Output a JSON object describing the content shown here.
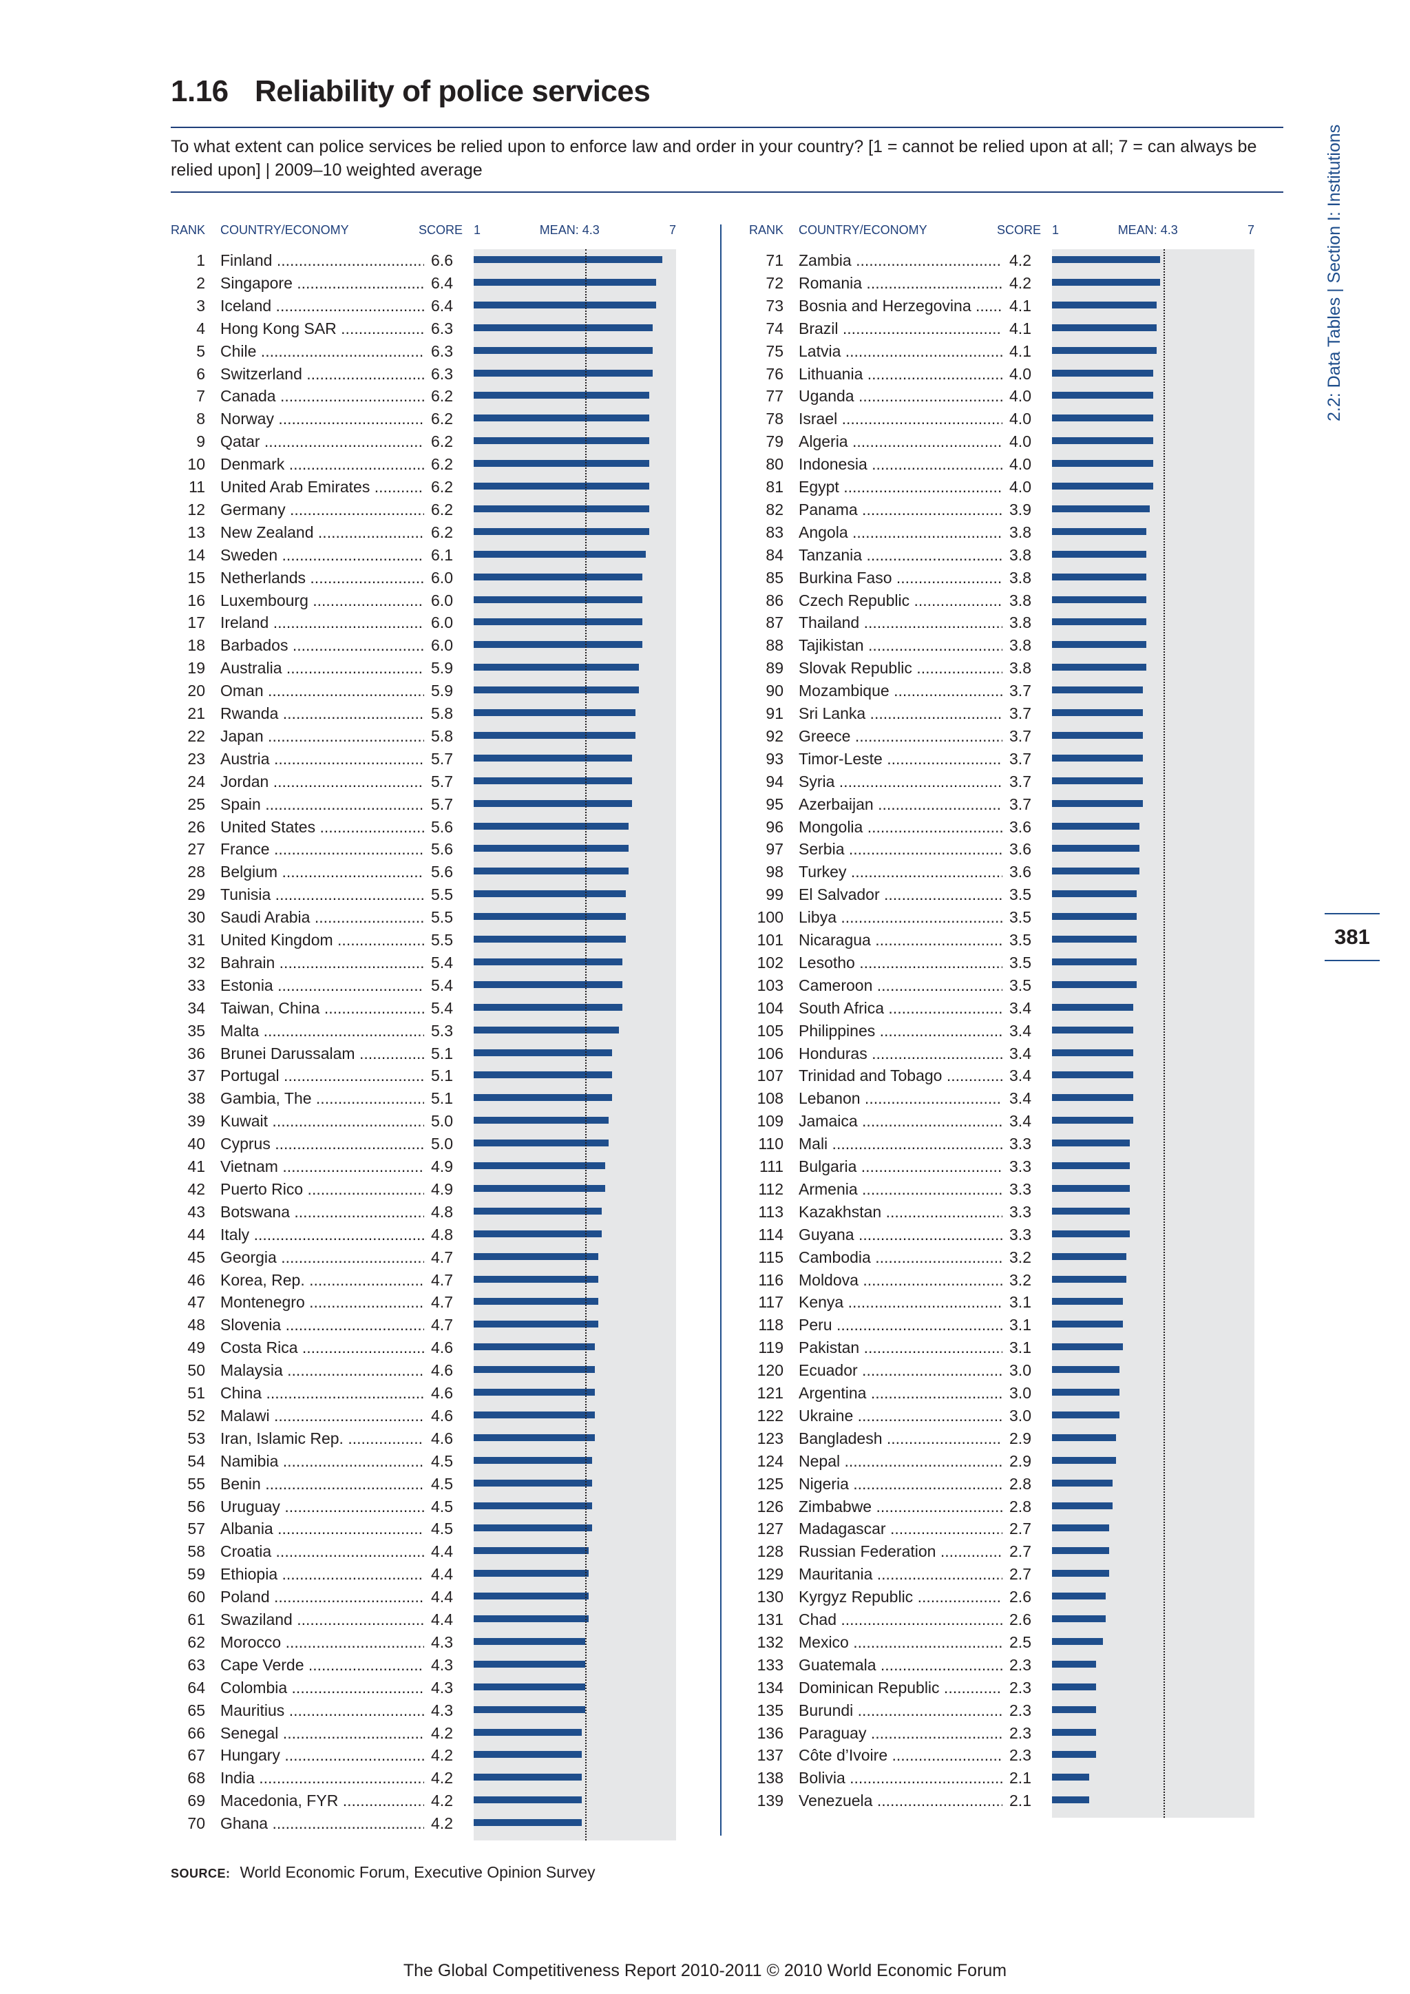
{
  "header": {
    "figure_number": "1.16",
    "title": "Reliability of police services",
    "question": "To what extent can police services be relied upon to enforce law and order in your country? [1 = cannot be relied upon at all; 7 = can always be relied upon]  |  2009–10 weighted average"
  },
  "side_label": "2.2: Data Tables  |  Section I: Institutions",
  "page_number": "381",
  "columns": {
    "rank": "RANK",
    "country": "COUNTRY/ECONOMY",
    "score": "SCORE",
    "axis_min": "1",
    "mean": "MEAN: 4.3",
    "axis_max": "7"
  },
  "chart_data": {
    "type": "bar",
    "orientation": "horizontal",
    "xlim": [
      1,
      7
    ],
    "mean": 4.3,
    "rows": [
      {
        "rank": 1,
        "country": "Finland",
        "score": 6.6
      },
      {
        "rank": 2,
        "country": "Singapore",
        "score": 6.4
      },
      {
        "rank": 3,
        "country": "Iceland",
        "score": 6.4
      },
      {
        "rank": 4,
        "country": "Hong Kong SAR",
        "score": 6.3
      },
      {
        "rank": 5,
        "country": "Chile",
        "score": 6.3
      },
      {
        "rank": 6,
        "country": "Switzerland",
        "score": 6.3
      },
      {
        "rank": 7,
        "country": "Canada",
        "score": 6.2
      },
      {
        "rank": 8,
        "country": "Norway",
        "score": 6.2
      },
      {
        "rank": 9,
        "country": "Qatar",
        "score": 6.2
      },
      {
        "rank": 10,
        "country": "Denmark",
        "score": 6.2
      },
      {
        "rank": 11,
        "country": "United Arab Emirates",
        "score": 6.2
      },
      {
        "rank": 12,
        "country": "Germany",
        "score": 6.2
      },
      {
        "rank": 13,
        "country": "New Zealand",
        "score": 6.2
      },
      {
        "rank": 14,
        "country": "Sweden",
        "score": 6.1
      },
      {
        "rank": 15,
        "country": "Netherlands",
        "score": 6.0
      },
      {
        "rank": 16,
        "country": "Luxembourg",
        "score": 6.0
      },
      {
        "rank": 17,
        "country": "Ireland",
        "score": 6.0
      },
      {
        "rank": 18,
        "country": "Barbados",
        "score": 6.0
      },
      {
        "rank": 19,
        "country": "Australia",
        "score": 5.9
      },
      {
        "rank": 20,
        "country": "Oman",
        "score": 5.9
      },
      {
        "rank": 21,
        "country": "Rwanda",
        "score": 5.8
      },
      {
        "rank": 22,
        "country": "Japan",
        "score": 5.8
      },
      {
        "rank": 23,
        "country": "Austria",
        "score": 5.7
      },
      {
        "rank": 24,
        "country": "Jordan",
        "score": 5.7
      },
      {
        "rank": 25,
        "country": "Spain",
        "score": 5.7
      },
      {
        "rank": 26,
        "country": "United States",
        "score": 5.6
      },
      {
        "rank": 27,
        "country": "France",
        "score": 5.6
      },
      {
        "rank": 28,
        "country": "Belgium",
        "score": 5.6
      },
      {
        "rank": 29,
        "country": "Tunisia",
        "score": 5.5
      },
      {
        "rank": 30,
        "country": "Saudi Arabia",
        "score": 5.5
      },
      {
        "rank": 31,
        "country": "United Kingdom",
        "score": 5.5
      },
      {
        "rank": 32,
        "country": "Bahrain",
        "score": 5.4
      },
      {
        "rank": 33,
        "country": "Estonia",
        "score": 5.4
      },
      {
        "rank": 34,
        "country": "Taiwan, China",
        "score": 5.4
      },
      {
        "rank": 35,
        "country": "Malta",
        "score": 5.3
      },
      {
        "rank": 36,
        "country": "Brunei Darussalam",
        "score": 5.1
      },
      {
        "rank": 37,
        "country": "Portugal",
        "score": 5.1
      },
      {
        "rank": 38,
        "country": "Gambia, The",
        "score": 5.1
      },
      {
        "rank": 39,
        "country": "Kuwait",
        "score": 5.0
      },
      {
        "rank": 40,
        "country": "Cyprus",
        "score": 5.0
      },
      {
        "rank": 41,
        "country": "Vietnam",
        "score": 4.9
      },
      {
        "rank": 42,
        "country": "Puerto Rico",
        "score": 4.9
      },
      {
        "rank": 43,
        "country": "Botswana",
        "score": 4.8
      },
      {
        "rank": 44,
        "country": "Italy",
        "score": 4.8
      },
      {
        "rank": 45,
        "country": "Georgia",
        "score": 4.7
      },
      {
        "rank": 46,
        "country": "Korea, Rep.",
        "score": 4.7
      },
      {
        "rank": 47,
        "country": "Montenegro",
        "score": 4.7
      },
      {
        "rank": 48,
        "country": "Slovenia",
        "score": 4.7
      },
      {
        "rank": 49,
        "country": "Costa Rica",
        "score": 4.6
      },
      {
        "rank": 50,
        "country": "Malaysia",
        "score": 4.6
      },
      {
        "rank": 51,
        "country": "China",
        "score": 4.6
      },
      {
        "rank": 52,
        "country": "Malawi",
        "score": 4.6
      },
      {
        "rank": 53,
        "country": "Iran, Islamic Rep.",
        "score": 4.6
      },
      {
        "rank": 54,
        "country": "Namibia",
        "score": 4.5
      },
      {
        "rank": 55,
        "country": "Benin",
        "score": 4.5
      },
      {
        "rank": 56,
        "country": "Uruguay",
        "score": 4.5
      },
      {
        "rank": 57,
        "country": "Albania",
        "score": 4.5
      },
      {
        "rank": 58,
        "country": "Croatia",
        "score": 4.4
      },
      {
        "rank": 59,
        "country": "Ethiopia",
        "score": 4.4
      },
      {
        "rank": 60,
        "country": "Poland",
        "score": 4.4
      },
      {
        "rank": 61,
        "country": "Swaziland",
        "score": 4.4
      },
      {
        "rank": 62,
        "country": "Morocco",
        "score": 4.3
      },
      {
        "rank": 63,
        "country": "Cape Verde",
        "score": 4.3
      },
      {
        "rank": 64,
        "country": "Colombia",
        "score": 4.3
      },
      {
        "rank": 65,
        "country": "Mauritius",
        "score": 4.3
      },
      {
        "rank": 66,
        "country": "Senegal",
        "score": 4.2
      },
      {
        "rank": 67,
        "country": "Hungary",
        "score": 4.2
      },
      {
        "rank": 68,
        "country": "India",
        "score": 4.2
      },
      {
        "rank": 69,
        "country": "Macedonia, FYR",
        "score": 4.2
      },
      {
        "rank": 70,
        "country": "Ghana",
        "score": 4.2
      },
      {
        "rank": 71,
        "country": "Zambia",
        "score": 4.2
      },
      {
        "rank": 72,
        "country": "Romania",
        "score": 4.2
      },
      {
        "rank": 73,
        "country": "Bosnia and Herzegovina",
        "score": 4.1
      },
      {
        "rank": 74,
        "country": "Brazil",
        "score": 4.1
      },
      {
        "rank": 75,
        "country": "Latvia",
        "score": 4.1
      },
      {
        "rank": 76,
        "country": "Lithuania",
        "score": 4.0
      },
      {
        "rank": 77,
        "country": "Uganda",
        "score": 4.0
      },
      {
        "rank": 78,
        "country": "Israel",
        "score": 4.0
      },
      {
        "rank": 79,
        "country": "Algeria",
        "score": 4.0
      },
      {
        "rank": 80,
        "country": "Indonesia",
        "score": 4.0
      },
      {
        "rank": 81,
        "country": "Egypt",
        "score": 4.0
      },
      {
        "rank": 82,
        "country": "Panama",
        "score": 3.9
      },
      {
        "rank": 83,
        "country": "Angola",
        "score": 3.8
      },
      {
        "rank": 84,
        "country": "Tanzania",
        "score": 3.8
      },
      {
        "rank": 85,
        "country": "Burkina Faso",
        "score": 3.8
      },
      {
        "rank": 86,
        "country": "Czech Republic",
        "score": 3.8
      },
      {
        "rank": 87,
        "country": "Thailand",
        "score": 3.8
      },
      {
        "rank": 88,
        "country": "Tajikistan",
        "score": 3.8
      },
      {
        "rank": 89,
        "country": "Slovak Republic",
        "score": 3.8
      },
      {
        "rank": 90,
        "country": "Mozambique",
        "score": 3.7
      },
      {
        "rank": 91,
        "country": "Sri Lanka",
        "score": 3.7
      },
      {
        "rank": 92,
        "country": "Greece",
        "score": 3.7
      },
      {
        "rank": 93,
        "country": "Timor-Leste",
        "score": 3.7
      },
      {
        "rank": 94,
        "country": "Syria",
        "score": 3.7
      },
      {
        "rank": 95,
        "country": "Azerbaijan",
        "score": 3.7
      },
      {
        "rank": 96,
        "country": "Mongolia",
        "score": 3.6
      },
      {
        "rank": 97,
        "country": "Serbia",
        "score": 3.6
      },
      {
        "rank": 98,
        "country": "Turkey",
        "score": 3.6
      },
      {
        "rank": 99,
        "country": "El Salvador",
        "score": 3.5
      },
      {
        "rank": 100,
        "country": "Libya",
        "score": 3.5
      },
      {
        "rank": 101,
        "country": "Nicaragua",
        "score": 3.5
      },
      {
        "rank": 102,
        "country": "Lesotho",
        "score": 3.5
      },
      {
        "rank": 103,
        "country": "Cameroon",
        "score": 3.5
      },
      {
        "rank": 104,
        "country": "South Africa",
        "score": 3.4
      },
      {
        "rank": 105,
        "country": "Philippines",
        "score": 3.4
      },
      {
        "rank": 106,
        "country": "Honduras",
        "score": 3.4
      },
      {
        "rank": 107,
        "country": "Trinidad and Tobago",
        "score": 3.4
      },
      {
        "rank": 108,
        "country": "Lebanon",
        "score": 3.4
      },
      {
        "rank": 109,
        "country": "Jamaica",
        "score": 3.4
      },
      {
        "rank": 110,
        "country": "Mali",
        "score": 3.3
      },
      {
        "rank": 111,
        "country": "Bulgaria",
        "score": 3.3
      },
      {
        "rank": 112,
        "country": "Armenia",
        "score": 3.3
      },
      {
        "rank": 113,
        "country": "Kazakhstan",
        "score": 3.3
      },
      {
        "rank": 114,
        "country": "Guyana",
        "score": 3.3
      },
      {
        "rank": 115,
        "country": "Cambodia",
        "score": 3.2
      },
      {
        "rank": 116,
        "country": "Moldova",
        "score": 3.2
      },
      {
        "rank": 117,
        "country": "Kenya",
        "score": 3.1
      },
      {
        "rank": 118,
        "country": "Peru",
        "score": 3.1
      },
      {
        "rank": 119,
        "country": "Pakistan",
        "score": 3.1
      },
      {
        "rank": 120,
        "country": "Ecuador",
        "score": 3.0
      },
      {
        "rank": 121,
        "country": "Argentina",
        "score": 3.0
      },
      {
        "rank": 122,
        "country": "Ukraine",
        "score": 3.0
      },
      {
        "rank": 123,
        "country": "Bangladesh",
        "score": 2.9
      },
      {
        "rank": 124,
        "country": "Nepal",
        "score": 2.9
      },
      {
        "rank": 125,
        "country": "Nigeria",
        "score": 2.8
      },
      {
        "rank": 126,
        "country": "Zimbabwe",
        "score": 2.8
      },
      {
        "rank": 127,
        "country": "Madagascar",
        "score": 2.7
      },
      {
        "rank": 128,
        "country": "Russian Federation",
        "score": 2.7
      },
      {
        "rank": 129,
        "country": "Mauritania",
        "score": 2.7
      },
      {
        "rank": 130,
        "country": "Kyrgyz Republic",
        "score": 2.6
      },
      {
        "rank": 131,
        "country": "Chad",
        "score": 2.6
      },
      {
        "rank": 132,
        "country": "Mexico",
        "score": 2.5
      },
      {
        "rank": 133,
        "country": "Guatemala",
        "score": 2.3
      },
      {
        "rank": 134,
        "country": "Dominican Republic",
        "score": 2.3
      },
      {
        "rank": 135,
        "country": "Burundi",
        "score": 2.3
      },
      {
        "rank": 136,
        "country": "Paraguay",
        "score": 2.3
      },
      {
        "rank": 137,
        "country": "Côte d’Ivoire",
        "score": 2.3
      },
      {
        "rank": 138,
        "country": "Bolivia",
        "score": 2.1
      },
      {
        "rank": 139,
        "country": "Venezuela",
        "score": 2.1
      }
    ]
  },
  "colors": {
    "bar": "#1f4e8c",
    "plot_bg": "#e6e7e8",
    "accent": "#1f3f7a"
  },
  "source": {
    "label": "SOURCE:",
    "text": "World Economic Forum, Executive Opinion Survey"
  },
  "footer": "The Global Competitiveness Report 2010-2011 © 2010 World Economic Forum"
}
